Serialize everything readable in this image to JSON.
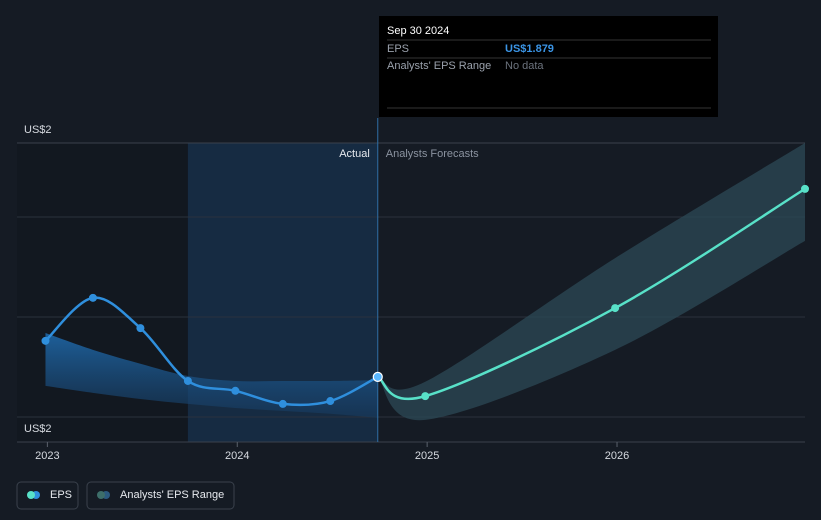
{
  "chart_data": {
    "type": "line",
    "xlim": [
      2022.84,
      2026.99
    ],
    "xticks": [
      2023,
      2024,
      2025,
      2026
    ],
    "ylim": [
      1.72,
      2.45
    ],
    "yticks": [
      {
        "value": 1.72,
        "label": "US$2"
      },
      {
        "value": 2.45,
        "label": "US$2"
      }
    ],
    "region_labels": {
      "actual": "Actual",
      "forecast": "Analysts Forecasts"
    },
    "series": [
      {
        "name": "EPS",
        "color": "#2f8fdd",
        "forecast_color": "#58e1c8",
        "x": [
          2022.99,
          2023.24,
          2023.49,
          2023.74,
          2023.99,
          2024.24,
          2024.49,
          2024.74
        ],
        "values": [
          1.967,
          2.072,
          1.998,
          1.869,
          1.845,
          1.813,
          1.82,
          1.879
        ],
        "forecast": {
          "x": [
            2024.74,
            2024.99,
            2025.99,
            2026.99
          ],
          "values": [
            1.879,
            1.832,
            2.047,
            2.338
          ]
        }
      },
      {
        "name": "Analysts' EPS Range",
        "color": "#2c4a56",
        "past": {
          "x": [
            2022.99,
            2023.24,
            2023.49,
            2023.74,
            2023.99,
            2024.24,
            2024.49,
            2024.74
          ],
          "high": [
            1.986,
            1.945,
            1.911,
            1.881,
            1.869,
            1.869,
            1.869,
            1.871
          ],
          "low": [
            1.857,
            1.84,
            1.825,
            1.813,
            1.803,
            1.796,
            1.789,
            1.779
          ]
        },
        "forecast": {
          "x": [
            2024.74,
            2024.99,
            2025.99,
            2026.99
          ],
          "high": [
            1.879,
            1.867,
            2.169,
            2.45
          ],
          "low": [
            1.879,
            1.774,
            1.945,
            2.211
          ]
        }
      }
    ],
    "tooltip": {
      "date": "Sep 30 2024",
      "rows": [
        {
          "label": "EPS",
          "value": "US$1.879"
        },
        {
          "label": "Analysts' EPS Range",
          "value": "No data"
        }
      ]
    }
  }
}
